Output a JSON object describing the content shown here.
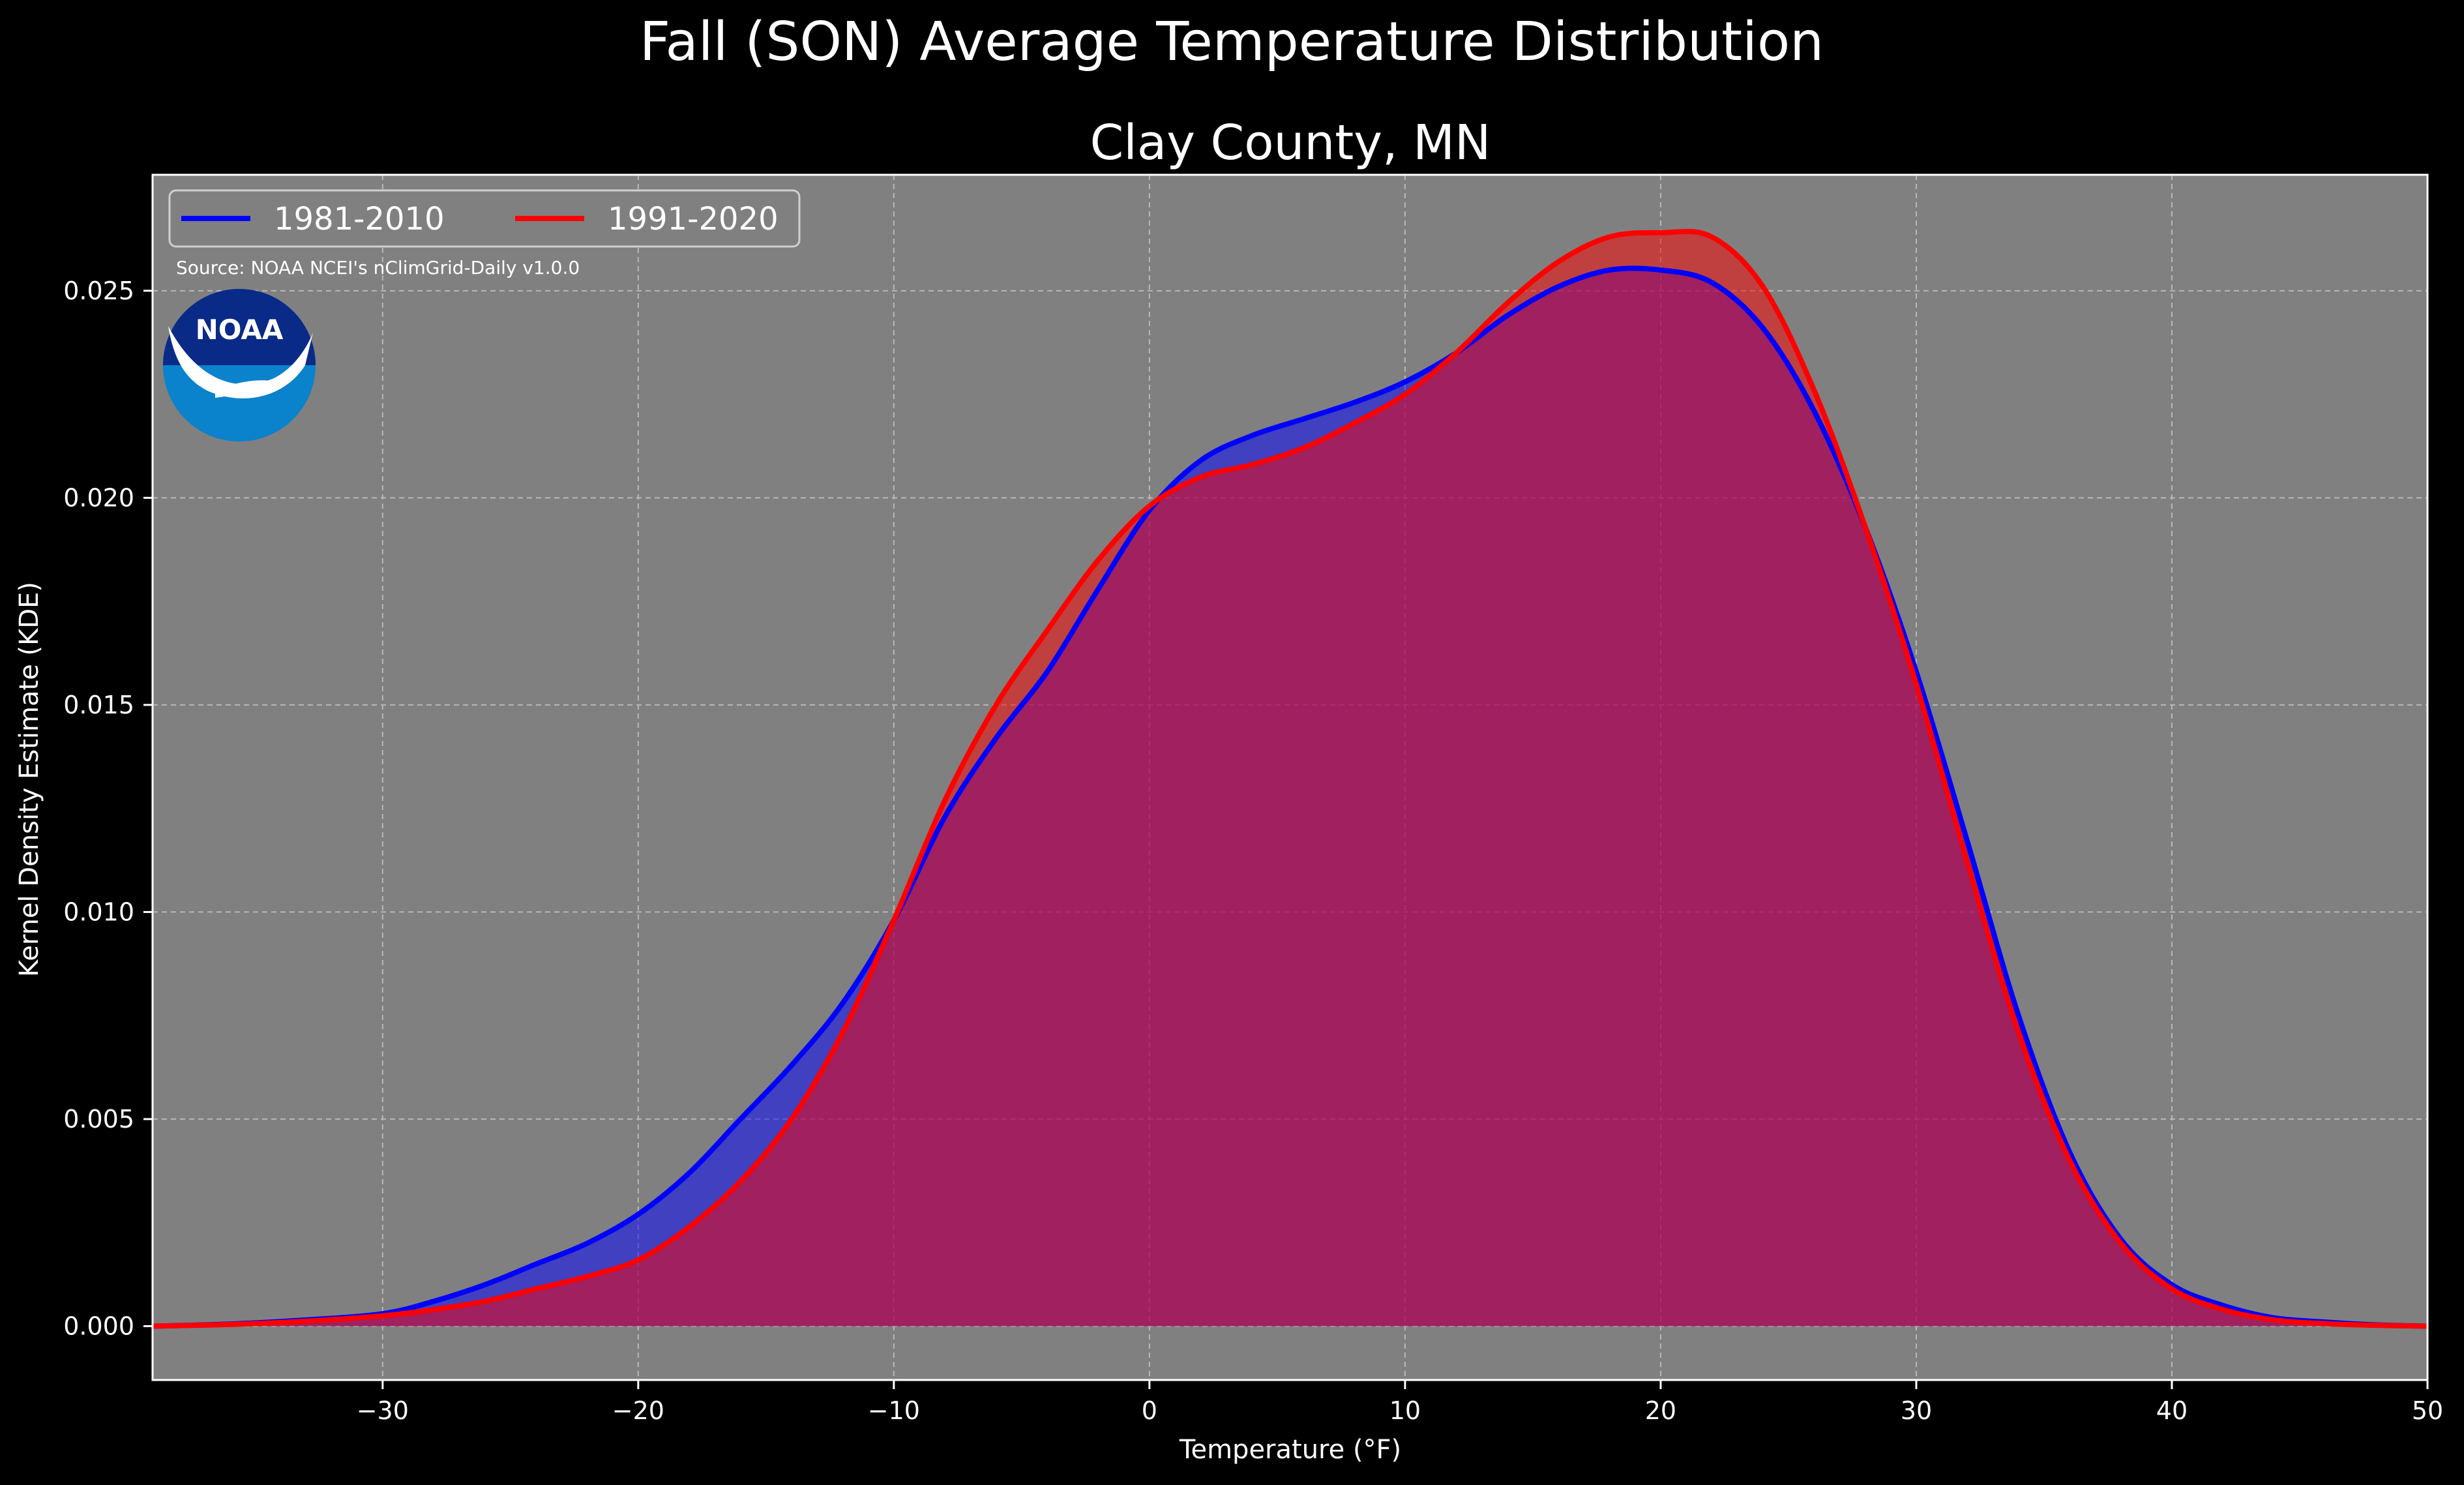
{
  "chart_data": {
    "type": "area",
    "title": "Fall (SON) Average Temperature Distribution",
    "subtitle": "Clay County, MN",
    "xlabel": "Temperature (°F)",
    "ylabel": "Kernel Density Estimate (KDE)",
    "xlim": [
      -39,
      50
    ],
    "ylim": [
      -0.0013,
      0.0278
    ],
    "xticks": [
      -30,
      -20,
      -10,
      0,
      10,
      20,
      30,
      40,
      50
    ],
    "yticks": [
      0.0,
      0.005,
      0.01,
      0.015,
      0.02,
      0.025
    ],
    "xtick_labels": [
      "−30",
      "−20",
      "−10",
      "0",
      "10",
      "20",
      "30",
      "40",
      "50"
    ],
    "ytick_labels": [
      "0.000",
      "0.005",
      "0.010",
      "0.015",
      "0.020",
      "0.025"
    ],
    "grid": true,
    "legend_position": "top-left",
    "source": "Source: NOAA NCEI's nClimGrid-Daily v1.0.0",
    "logo_text": "NOAA",
    "colors": {
      "background": "#000000",
      "plot_background": "#808080",
      "series_1": "#0000ff",
      "series_2": "#ff0000"
    },
    "series": [
      {
        "name": "1981-2010",
        "color": "#0000ff",
        "x": [
          -39,
          -36,
          -33,
          -30,
          -28,
          -26,
          -24,
          -22,
          -20,
          -18,
          -16,
          -14,
          -12,
          -10,
          -8,
          -6,
          -4,
          -2,
          0,
          2,
          4,
          6,
          8,
          10,
          12,
          14,
          16,
          18,
          20,
          22,
          24,
          26,
          28,
          30,
          32,
          34,
          36,
          38,
          40,
          42,
          44,
          46,
          48,
          50
        ],
        "y": [
          0.0,
          5e-05,
          0.00015,
          0.0003,
          0.0006,
          0.001,
          0.0015,
          0.002,
          0.0027,
          0.0037,
          0.005,
          0.0063,
          0.0078,
          0.0098,
          0.0123,
          0.0142,
          0.0158,
          0.0178,
          0.0197,
          0.0209,
          0.0215,
          0.0219,
          0.0223,
          0.0228,
          0.0235,
          0.0244,
          0.0251,
          0.0255,
          0.0255,
          0.0252,
          0.0241,
          0.0221,
          0.0193,
          0.0158,
          0.0117,
          0.0075,
          0.0042,
          0.0021,
          0.001,
          0.0005,
          0.0002,
          0.0001,
          3e-05,
          0.0
        ]
      },
      {
        "name": "1991-2020",
        "color": "#ff0000",
        "x": [
          -39,
          -36,
          -33,
          -30,
          -28,
          -26,
          -24,
          -22,
          -20,
          -18,
          -16,
          -14,
          -12,
          -10,
          -8,
          -6,
          -4,
          -2,
          0,
          2,
          4,
          6,
          8,
          10,
          12,
          14,
          16,
          18,
          20,
          22,
          24,
          26,
          28,
          30,
          32,
          34,
          36,
          38,
          40,
          42,
          44,
          46,
          48,
          50
        ],
        "y": [
          0.0,
          4e-05,
          0.00012,
          0.00025,
          0.0004,
          0.0006,
          0.0009,
          0.0012,
          0.0016,
          0.0024,
          0.0035,
          0.005,
          0.0071,
          0.0098,
          0.0127,
          0.015,
          0.0168,
          0.0185,
          0.0198,
          0.0205,
          0.0208,
          0.0212,
          0.0218,
          0.0225,
          0.0235,
          0.0247,
          0.0257,
          0.0263,
          0.0264,
          0.0263,
          0.0251,
          0.0226,
          0.0193,
          0.0155,
          0.0112,
          0.0071,
          0.004,
          0.002,
          0.0009,
          0.0004,
          0.00015,
          6e-05,
          2e-05,
          0.0
        ]
      }
    ]
  }
}
